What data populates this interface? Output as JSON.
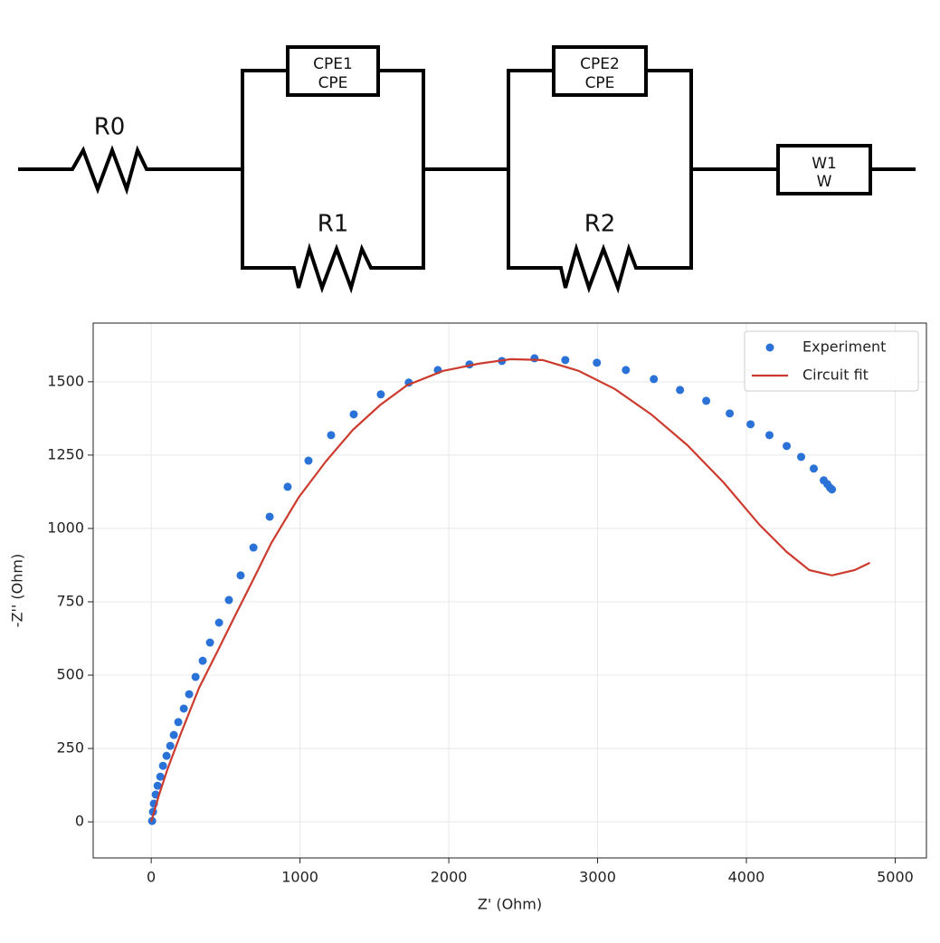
{
  "diagram": {
    "labels": {
      "r0": "R0",
      "cpe1_name": "CPE1",
      "cpe1_type": "CPE",
      "r1": "R1",
      "cpe2_name": "CPE2",
      "cpe2_type": "CPE",
      "r2": "R2",
      "w1_name": "W1",
      "w1_type": "W"
    }
  },
  "chart_data": {
    "type": "scatter",
    "xlabel": "Z' (Ohm)",
    "ylabel": "-Z'' (Ohm)",
    "xlim": [
      -390,
      5210
    ],
    "ylim": [
      -123,
      1700
    ],
    "xticks": [
      0,
      1000,
      2000,
      3000,
      4000,
      5000
    ],
    "yticks": [
      0,
      250,
      500,
      750,
      1000,
      1250,
      1500
    ],
    "grid": true,
    "legend": "upper right",
    "series": [
      {
        "name": "Experiment",
        "type": "scatter",
        "color": "#2a72d8",
        "x": [
          6,
          12,
          18,
          30,
          43,
          61,
          79,
          103,
          128,
          152,
          182,
          219,
          255,
          298,
          346,
          395,
          456,
          522,
          601,
          687,
          796,
          917,
          1057,
          1209,
          1361,
          1543,
          1731,
          1926,
          2139,
          2357,
          2576,
          2783,
          2995,
          3190,
          3378,
          3554,
          3730,
          3888,
          4028,
          4155,
          4271,
          4368,
          4453,
          4520,
          4544,
          4562,
          4575
        ],
        "values": [
          3,
          34,
          62,
          93,
          123,
          154,
          191,
          225,
          259,
          296,
          340,
          386,
          435,
          494,
          549,
          611,
          679,
          756,
          840,
          935,
          1040,
          1142,
          1231,
          1318,
          1389,
          1457,
          1497,
          1540,
          1559,
          1571,
          1580,
          1574,
          1565,
          1540,
          1509,
          1472,
          1435,
          1392,
          1355,
          1318,
          1281,
          1244,
          1204,
          1164,
          1151,
          1139,
          1133
        ]
      },
      {
        "name": "Circuit fit",
        "type": "line",
        "color": "#cc3b2e",
        "x": [
          0,
          49,
          109,
          200,
          322,
          444,
          565,
          687,
          808,
          990,
          1173,
          1355,
          1537,
          1719,
          1962,
          2205,
          2418,
          2631,
          2874,
          3117,
          3360,
          3603,
          3846,
          4089,
          4271,
          4423,
          4575,
          4727,
          4830
        ],
        "values": [
          0,
          86,
          179,
          302,
          457,
          580,
          704,
          827,
          951,
          1105,
          1228,
          1336,
          1420,
          1488,
          1537,
          1562,
          1577,
          1574,
          1537,
          1475,
          1389,
          1284,
          1157,
          1012,
          920,
          858,
          840,
          858,
          883
        ]
      }
    ]
  }
}
